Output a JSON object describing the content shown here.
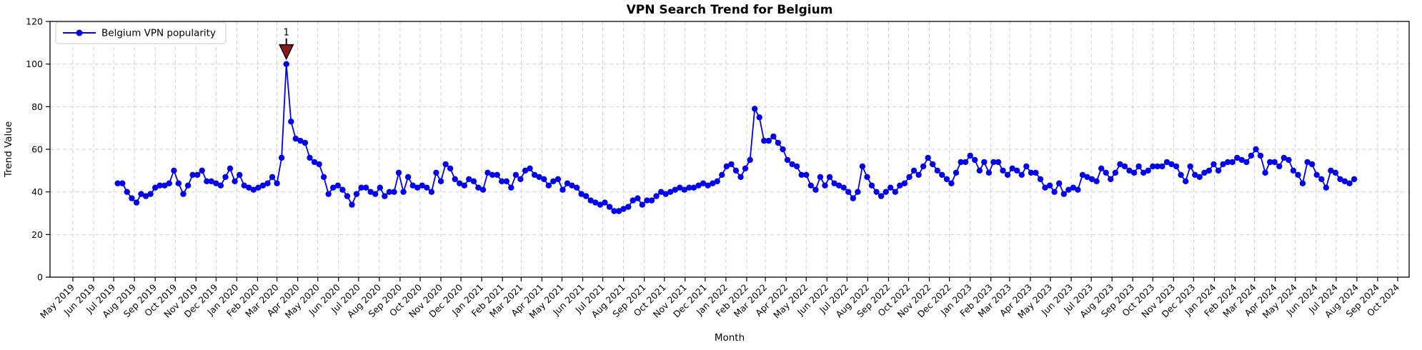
{
  "title": "VPN Search Trend for Belgium",
  "legend": {
    "label": "Belgium VPN popularity"
  },
  "colors": {
    "line": "#0000ee",
    "marker": "#0000ee",
    "annotation": "#8b1a1a",
    "grid": "#c9c9c9",
    "axis": "#000000",
    "background": "#ffffff"
  },
  "chart_data": {
    "type": "line",
    "title": "VPN Search Trend for Belgium",
    "xlabel": "Month",
    "ylabel": "Trend Value",
    "ylim": [
      0,
      120
    ],
    "yticks": [
      0,
      20,
      40,
      60,
      80,
      100,
      120
    ],
    "grid": true,
    "legend_position": "upper left",
    "x_tick_labels": [
      "May 2019",
      "Jun 2019",
      "Jul 2019",
      "Aug 2019",
      "Sep 2019",
      "Oct 2019",
      "Nov 2019",
      "Dec 2019",
      "Jan 2020",
      "Feb 2020",
      "Mar 2020",
      "Apr 2020",
      "May 2020",
      "Jun 2020",
      "Jul 2020",
      "Aug 2020",
      "Sep 2020",
      "Oct 2020",
      "Nov 2020",
      "Dec 2020",
      "Jan 2021",
      "Feb 2021",
      "Mar 2021",
      "Apr 2021",
      "May 2021",
      "Jun 2021",
      "Jul 2021",
      "Aug 2021",
      "Sep 2021",
      "Oct 2021",
      "Nov 2021",
      "Dec 2021",
      "Jan 2022",
      "Feb 2022",
      "Mar 2022",
      "Apr 2022",
      "May 2022",
      "Jun 2022",
      "Jul 2022",
      "Aug 2022",
      "Sep 2022",
      "Oct 2022",
      "Nov 2022",
      "Dec 2022",
      "Jan 2023",
      "Feb 2023",
      "Mar 2023",
      "Apr 2023",
      "May 2023",
      "Jun 2023",
      "Jul 2023",
      "Aug 2023",
      "Sep 2023",
      "Oct 2023",
      "Nov 2023",
      "Dec 2023",
      "Jan 2024",
      "Feb 2024",
      "Mar 2024",
      "Apr 2024",
      "May 2024",
      "Jun 2024",
      "Jul 2024",
      "Aug 2024",
      "Sep 2024",
      "Oct 2024"
    ],
    "series": [
      {
        "name": "Belgium VPN popularity",
        "start_week": "2019-07-07",
        "interval_days": 7,
        "values": [
          44,
          44,
          40,
          37,
          35,
          39,
          38,
          39,
          42,
          43,
          43,
          44,
          50,
          44,
          39,
          43,
          48,
          48,
          50,
          45,
          45,
          44,
          43,
          47,
          51,
          45,
          48,
          43,
          42,
          41,
          42,
          43,
          44,
          47,
          44,
          56,
          100,
          73,
          65,
          64,
          63,
          56,
          54,
          53,
          47,
          39,
          42,
          43,
          41,
          38,
          34,
          39,
          42,
          42,
          40,
          39,
          42,
          38,
          40,
          40,
          49,
          40,
          47,
          43,
          42,
          43,
          42,
          40,
          49,
          45,
          53,
          51,
          46,
          44,
          43,
          46,
          45,
          42,
          41,
          49,
          48,
          48,
          45,
          45,
          42,
          48,
          46,
          50,
          51,
          48,
          47,
          46,
          43,
          45,
          46,
          41,
          44,
          43,
          42,
          39,
          38,
          36,
          35,
          34,
          35,
          33,
          31,
          31,
          32,
          33,
          36,
          37,
          34,
          36,
          36,
          38,
          40,
          39,
          40,
          41,
          42,
          41,
          42,
          42,
          43,
          44,
          43,
          44,
          45,
          48,
          52,
          53,
          50,
          47,
          51,
          55,
          79,
          75,
          64,
          64,
          66,
          63,
          60,
          55,
          53,
          52,
          48,
          48,
          43,
          41,
          47,
          43,
          47,
          44,
          43,
          42,
          40,
          37,
          40,
          52,
          47,
          43,
          40,
          38,
          40,
          42,
          40,
          43,
          44,
          47,
          50,
          48,
          52,
          56,
          53,
          50,
          48,
          46,
          44,
          49,
          54,
          54,
          57,
          55,
          50,
          54,
          49,
          54,
          54,
          50,
          48,
          51,
          50,
          48,
          52,
          49,
          49,
          46,
          42,
          43,
          40,
          44,
          39,
          41,
          42,
          41,
          48,
          47,
          46,
          45,
          51,
          49,
          46,
          49,
          53,
          52,
          50,
          49,
          52,
          49,
          50,
          52,
          52,
          52,
          54,
          53,
          52,
          48,
          45,
          52,
          48,
          47,
          49,
          50,
          53,
          50,
          53,
          54,
          54,
          56,
          55,
          54,
          57,
          60,
          57,
          49,
          54,
          54,
          52,
          56,
          55,
          50,
          48,
          44,
          54,
          53,
          48,
          46,
          42,
          50,
          49,
          46,
          45,
          44,
          46
        ]
      }
    ],
    "annotations": [
      {
        "label": "1",
        "at_week": "2020-03-15",
        "at_value": 100
      }
    ]
  }
}
